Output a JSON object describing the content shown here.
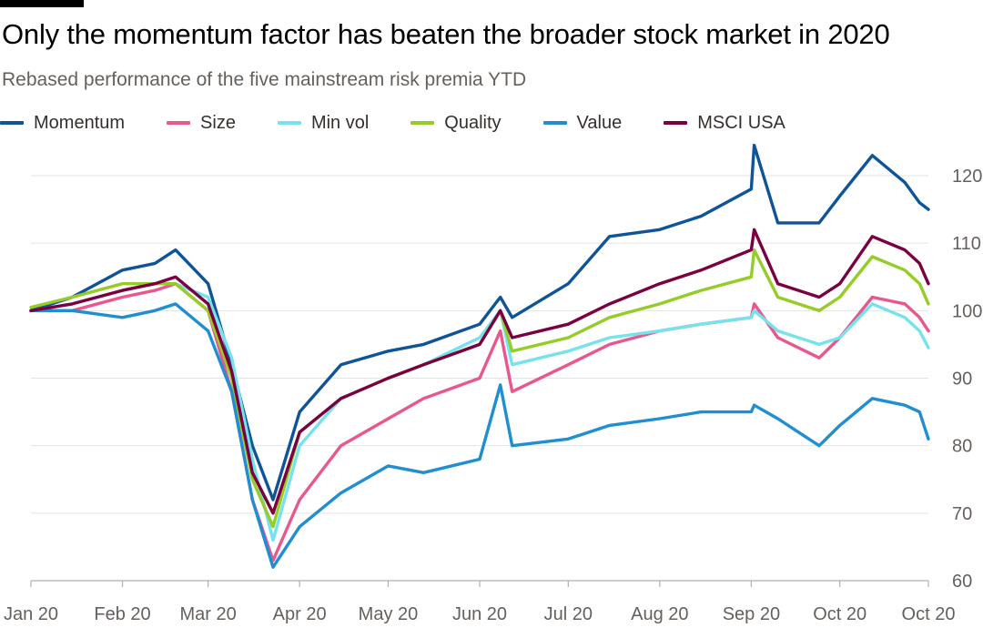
{
  "chart_data": {
    "type": "line",
    "title": "Only the momentum factor has beaten the broader stock market in 2020",
    "subtitle": "Rebased performance of the five mainstream risk premia YTD",
    "xlabel": "",
    "ylabel": "",
    "ylim": [
      60,
      125
    ],
    "yticks": [
      "120",
      "110",
      "100",
      "90",
      "80",
      "70",
      "60"
    ],
    "y_axis_side": "right",
    "grid": "horizontal",
    "legend_position": "top-left",
    "x_ticks": [
      "Jan 20",
      "Feb 20",
      "Mar 20",
      "Apr 20",
      "May 20",
      "Jun 20",
      "Jul 20",
      "Aug 20",
      "Sep 20",
      "Oct 20",
      "Oct 20"
    ],
    "x_tick_dates": [
      "2020-01-01",
      "2020-02-01",
      "2020-03-01",
      "2020-04-01",
      "2020-05-01",
      "2020-06-01",
      "2020-07-01",
      "2020-08-01",
      "2020-09-01",
      "2020-10-01",
      "2020-10-31"
    ],
    "x": [
      "2020-01-01",
      "2020-01-15",
      "2020-02-01",
      "2020-02-12",
      "2020-02-19",
      "2020-03-01",
      "2020-03-09",
      "2020-03-16",
      "2020-03-23",
      "2020-04-01",
      "2020-04-15",
      "2020-05-01",
      "2020-05-13",
      "2020-06-01",
      "2020-06-08",
      "2020-06-12",
      "2020-07-01",
      "2020-07-15",
      "2020-08-01",
      "2020-08-15",
      "2020-09-01",
      "2020-09-02",
      "2020-09-10",
      "2020-09-24",
      "2020-10-01",
      "2020-10-12",
      "2020-10-23",
      "2020-10-28",
      "2020-10-31"
    ],
    "series": [
      {
        "name": "Momentum",
        "color": "#0f5499",
        "values": [
          100,
          102,
          106,
          107,
          109,
          104,
          92,
          80,
          72,
          85,
          92,
          94,
          95,
          98,
          102,
          99,
          104,
          111,
          112,
          114,
          118,
          124.5,
          113,
          113,
          117,
          123,
          119,
          116,
          115
        ]
      },
      {
        "name": "Size",
        "color": "#e8578e",
        "values": [
          100,
          100,
          102,
          103,
          104,
          100,
          88,
          72,
          63,
          72,
          80,
          84,
          87,
          90,
          97,
          88,
          92,
          95,
          97,
          98,
          99,
          101,
          96,
          93,
          96,
          102,
          101,
          99,
          97
        ]
      },
      {
        "name": "Min vol",
        "color": "#76e2ee",
        "values": [
          100,
          101,
          103,
          104,
          104,
          102,
          93,
          78,
          66,
          80,
          87,
          90,
          92,
          96,
          100,
          92,
          94,
          96,
          97,
          98,
          99,
          100,
          97,
          95,
          96,
          101,
          99,
          97,
          94.5
        ]
      },
      {
        "name": "Quality",
        "color": "#96cc28",
        "values": [
          100.5,
          102,
          104,
          104,
          104,
          100,
          90,
          75,
          68,
          82,
          87,
          90,
          92,
          95,
          100,
          94,
          96,
          99,
          101,
          103,
          105,
          109,
          102,
          100,
          102,
          108,
          106,
          104,
          101
        ]
      },
      {
        "name": "Value",
        "color": "#1f8fd1",
        "values": [
          100,
          100,
          99,
          100,
          101,
          97,
          88,
          72,
          62,
          68,
          73,
          77,
          76,
          78,
          89,
          80,
          81,
          83,
          84,
          85,
          85,
          86,
          84,
          80,
          83,
          87,
          86,
          85,
          81
        ]
      },
      {
        "name": "MSCI USA",
        "color": "#7a0040",
        "values": [
          100,
          101,
          103,
          104,
          105,
          101,
          91,
          76,
          70,
          82,
          87,
          90,
          92,
          95,
          100,
          96,
          98,
          101,
          104,
          106,
          109,
          112,
          104,
          102,
          104,
          111,
          109,
          107,
          104
        ]
      }
    ]
  }
}
